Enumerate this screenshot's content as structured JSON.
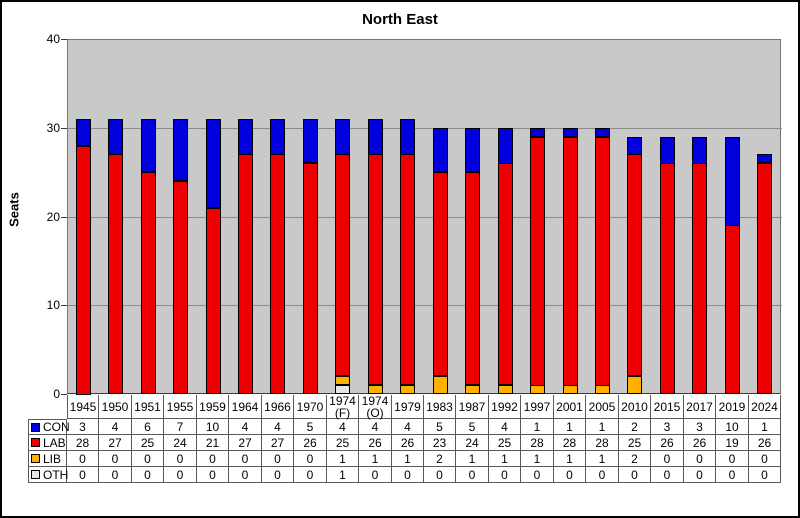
{
  "chart_data": {
    "type": "bar",
    "stacked": true,
    "title": "North East",
    "ylabel": "Seats",
    "ylim": [
      0,
      40
    ],
    "yticks": [
      0,
      10,
      20,
      30,
      40
    ],
    "grid": true,
    "legend_position": "table-rows-left",
    "categories": [
      "1945",
      "1950",
      "1951",
      "1955",
      "1959",
      "1964",
      "1966",
      "1970",
      "1974 (F)",
      "1974 (O)",
      "1979",
      "1983",
      "1987",
      "1992",
      "1997",
      "2001",
      "2005",
      "2010",
      "2015",
      "2017",
      "2019",
      "2024"
    ],
    "series": [
      {
        "name": "CON",
        "color": "#0000DD",
        "values": [
          3,
          4,
          6,
          7,
          10,
          4,
          4,
          5,
          4,
          4,
          4,
          5,
          5,
          4,
          1,
          1,
          1,
          2,
          3,
          3,
          10,
          1
        ]
      },
      {
        "name": "LAB",
        "color": "#EE0000",
        "values": [
          28,
          27,
          25,
          24,
          21,
          27,
          27,
          26,
          25,
          26,
          26,
          23,
          24,
          25,
          28,
          28,
          28,
          25,
          26,
          26,
          19,
          26
        ]
      },
      {
        "name": "LIB",
        "color": "#FFB000",
        "values": [
          0,
          0,
          0,
          0,
          0,
          0,
          0,
          0,
          1,
          1,
          1,
          2,
          1,
          1,
          1,
          1,
          1,
          2,
          0,
          0,
          0,
          0
        ]
      },
      {
        "name": "OTH",
        "color": "#E6E6E6",
        "values": [
          0,
          0,
          0,
          0,
          0,
          0,
          0,
          0,
          1,
          0,
          0,
          0,
          0,
          0,
          0,
          0,
          0,
          0,
          0,
          0,
          0,
          0
        ]
      }
    ],
    "stack_order_bottom_to_top": [
      "OTH",
      "LIB",
      "LAB",
      "CON"
    ]
  },
  "styles": {
    "plot_bg": "#C9C9C9",
    "gridline": "#8C8C8C",
    "plot_border": "#757575",
    "axis_line": "#3A3A3A",
    "bar_outline": "#000000",
    "table_line": "#595959",
    "frame_border": "#000000",
    "text": "#000000"
  }
}
